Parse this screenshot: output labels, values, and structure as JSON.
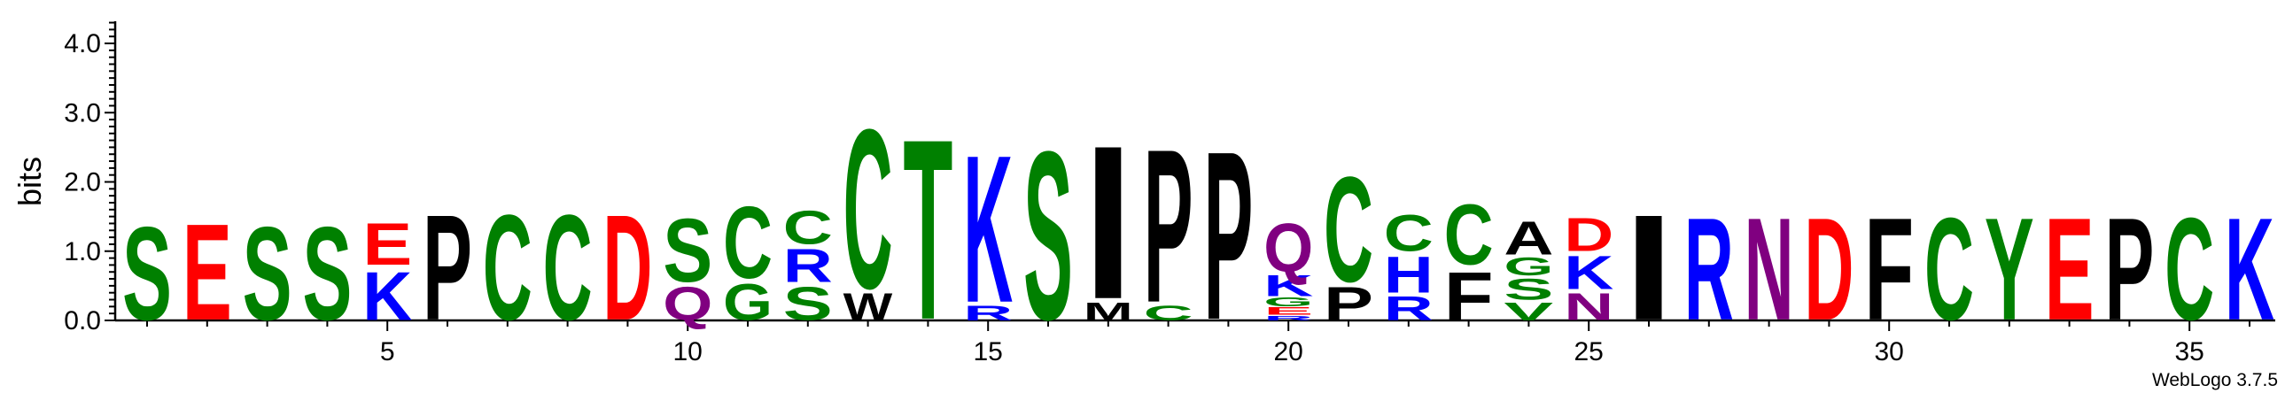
{
  "chart_data": {
    "type": "sequence-logo",
    "ylabel": "bits",
    "ylim": [
      0,
      4.32
    ],
    "yticks": [
      "0.0",
      "1.0",
      "2.0",
      "3.0",
      "4.0"
    ],
    "xticks": [
      "5",
      "10",
      "15",
      "20",
      "25",
      "30",
      "35"
    ],
    "credit": "WebLogo 3.7.5",
    "colors": {
      "green": "#008000",
      "blue": "#0000ff",
      "red": "#ff0000",
      "black": "#000000",
      "purple": "#800080"
    },
    "positions": [
      {
        "pos": 1,
        "letters": [
          {
            "c": "S",
            "h": 1.55,
            "col": "green"
          }
        ]
      },
      {
        "pos": 2,
        "letters": [
          {
            "c": "E",
            "h": 1.6,
            "col": "red"
          }
        ]
      },
      {
        "pos": 3,
        "letters": [
          {
            "c": "S",
            "h": 1.55,
            "col": "green"
          }
        ]
      },
      {
        "pos": 4,
        "letters": [
          {
            "c": "S",
            "h": 1.55,
            "col": "green"
          }
        ]
      },
      {
        "pos": 5,
        "letters": [
          {
            "c": "K",
            "h": 0.8,
            "col": "blue"
          },
          {
            "c": "E",
            "h": 0.7,
            "col": "red"
          }
        ]
      },
      {
        "pos": 6,
        "letters": [
          {
            "c": "P",
            "h": 1.75,
            "col": "black"
          }
        ]
      },
      {
        "pos": 7,
        "letters": [
          {
            "c": "C",
            "h": 1.75,
            "col": "green"
          }
        ]
      },
      {
        "pos": 8,
        "letters": [
          {
            "c": "C",
            "h": 1.75,
            "col": "green"
          }
        ]
      },
      {
        "pos": 9,
        "letters": [
          {
            "c": "D",
            "h": 1.75,
            "col": "red"
          }
        ]
      },
      {
        "pos": 10,
        "letters": [
          {
            "c": "Q",
            "h": 0.55,
            "col": "purple"
          },
          {
            "c": "S",
            "h": 1.05,
            "col": "green"
          }
        ]
      },
      {
        "pos": 11,
        "letters": [
          {
            "c": "G",
            "h": 0.6,
            "col": "green"
          },
          {
            "c": "C",
            "h": 1.2,
            "col": "green"
          }
        ]
      },
      {
        "pos": 12,
        "letters": [
          {
            "c": "S",
            "h": 0.55,
            "col": "green"
          },
          {
            "c": "R",
            "h": 0.55,
            "col": "blue"
          },
          {
            "c": "C",
            "h": 0.55,
            "col": "green"
          }
        ]
      },
      {
        "pos": 13,
        "letters": [
          {
            "c": "W",
            "h": 0.45,
            "col": "black"
          },
          {
            "c": "C",
            "h": 2.65,
            "col": "green"
          }
        ]
      },
      {
        "pos": 14,
        "letters": [
          {
            "c": "T",
            "h": 3.0,
            "col": "green"
          }
        ]
      },
      {
        "pos": 15,
        "letters": [
          {
            "c": "R",
            "h": 0.25,
            "col": "blue"
          },
          {
            "c": "K",
            "h": 2.45,
            "col": "blue"
          }
        ]
      },
      {
        "pos": 16,
        "letters": [
          {
            "c": "S",
            "h": 2.8,
            "col": "green"
          }
        ]
      },
      {
        "pos": 17,
        "letters": [
          {
            "c": "M",
            "h": 0.3,
            "col": "black"
          },
          {
            "c": "I",
            "h": 2.55,
            "col": "black"
          }
        ]
      },
      {
        "pos": 18,
        "letters": [
          {
            "c": "C",
            "h": 0.25,
            "col": "green"
          },
          {
            "c": "P",
            "h": 2.55,
            "col": "black"
          }
        ]
      },
      {
        "pos": 19,
        "letters": [
          {
            "c": "P",
            "h": 2.8,
            "col": "black"
          }
        ]
      },
      {
        "pos": 20,
        "letters": [
          {
            "c": "R",
            "h": 0.08,
            "col": "blue"
          },
          {
            "c": "E",
            "h": 0.12,
            "col": "red"
          },
          {
            "c": "G",
            "h": 0.15,
            "col": "green"
          },
          {
            "c": "K",
            "h": 0.35,
            "col": "blue"
          },
          {
            "c": "Q",
            "h": 0.8,
            "col": "purple"
          }
        ]
      },
      {
        "pos": 21,
        "letters": [
          {
            "c": "P",
            "h": 0.55,
            "col": "black"
          },
          {
            "c": "C",
            "h": 1.75,
            "col": "green"
          }
        ]
      },
      {
        "pos": 22,
        "letters": [
          {
            "c": "R",
            "h": 0.4,
            "col": "blue"
          },
          {
            "c": "H",
            "h": 0.6,
            "col": "blue"
          },
          {
            "c": "C",
            "h": 0.6,
            "col": "green"
          }
        ]
      },
      {
        "pos": 23,
        "letters": [
          {
            "c": "F",
            "h": 0.8,
            "col": "black"
          },
          {
            "c": "C",
            "h": 1.0,
            "col": "green"
          }
        ]
      },
      {
        "pos": 24,
        "letters": [
          {
            "c": "V",
            "h": 0.3,
            "col": "green"
          },
          {
            "c": "S",
            "h": 0.35,
            "col": "green"
          },
          {
            "c": "G",
            "h": 0.3,
            "col": "green"
          },
          {
            "c": "A",
            "h": 0.55,
            "col": "black"
          }
        ]
      },
      {
        "pos": 25,
        "letters": [
          {
            "c": "N",
            "h": 0.45,
            "col": "purple"
          },
          {
            "c": "K",
            "h": 0.55,
            "col": "blue"
          },
          {
            "c": "D",
            "h": 0.55,
            "col": "red"
          }
        ]
      },
      {
        "pos": 26,
        "letters": [
          {
            "c": "I",
            "h": 1.75,
            "col": "black"
          }
        ]
      },
      {
        "pos": 27,
        "letters": [
          {
            "c": "R",
            "h": 1.7,
            "col": "blue"
          }
        ]
      },
      {
        "pos": 28,
        "letters": [
          {
            "c": "N",
            "h": 1.7,
            "col": "purple"
          }
        ]
      },
      {
        "pos": 29,
        "letters": [
          {
            "c": "D",
            "h": 1.7,
            "col": "red"
          }
        ]
      },
      {
        "pos": 30,
        "letters": [
          {
            "c": "F",
            "h": 1.7,
            "col": "black"
          }
        ]
      },
      {
        "pos": 31,
        "letters": [
          {
            "c": "C",
            "h": 1.7,
            "col": "green"
          }
        ]
      },
      {
        "pos": 32,
        "letters": [
          {
            "c": "Y",
            "h": 1.7,
            "col": "green"
          }
        ]
      },
      {
        "pos": 33,
        "letters": [
          {
            "c": "E",
            "h": 1.7,
            "col": "red"
          }
        ]
      },
      {
        "pos": 34,
        "letters": [
          {
            "c": "P",
            "h": 1.7,
            "col": "black"
          }
        ]
      },
      {
        "pos": 35,
        "letters": [
          {
            "c": "C",
            "h": 1.7,
            "col": "green"
          }
        ]
      },
      {
        "pos": 36,
        "letters": [
          {
            "c": "K",
            "h": 1.7,
            "col": "blue"
          }
        ]
      }
    ]
  }
}
